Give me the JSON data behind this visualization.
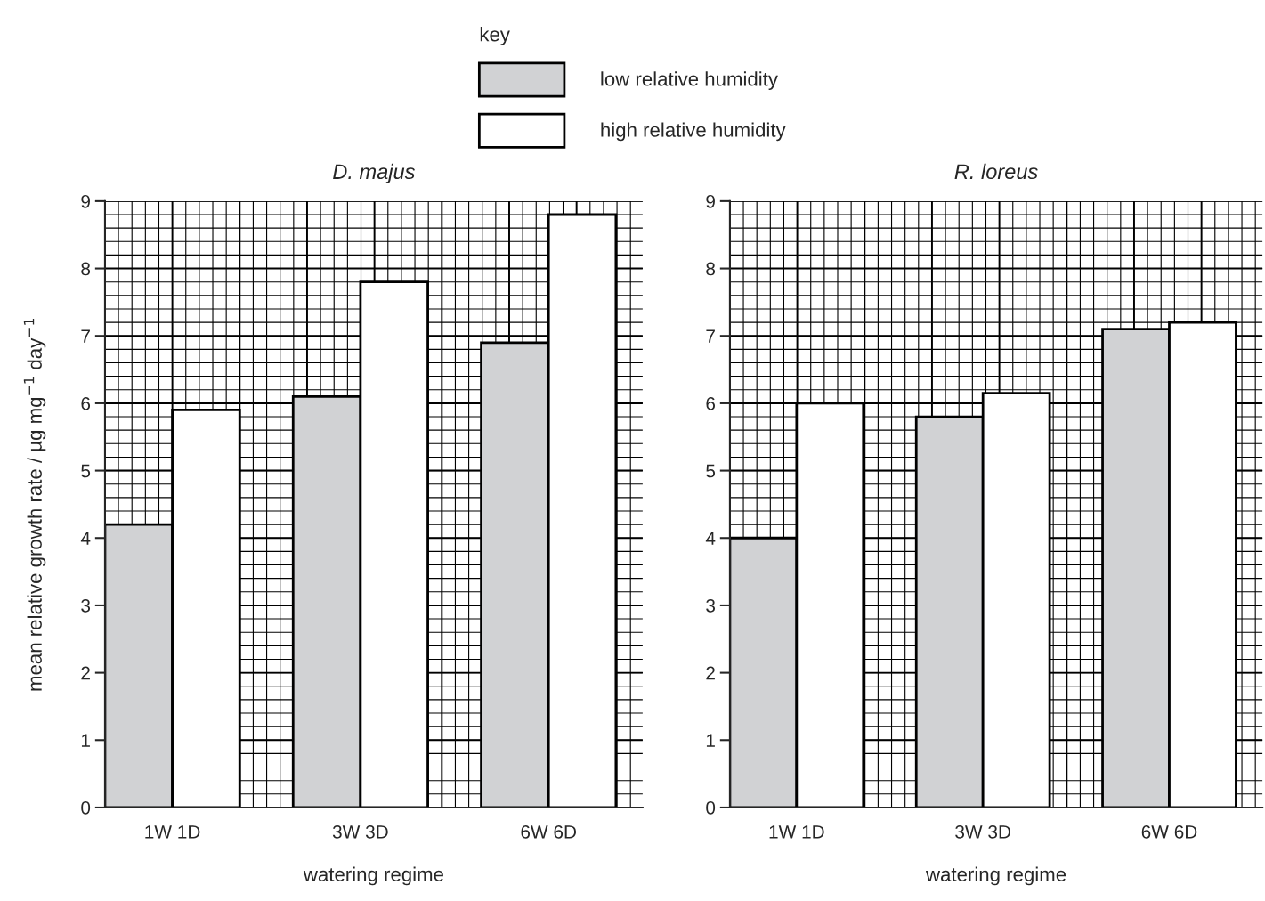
{
  "chart_data": [
    {
      "type": "bar",
      "title": "D. majus",
      "xlabel": "watering regime",
      "ylabel": "mean relative growth rate / µg mg$^{−1}$ day$^{−1}$",
      "legend_title": "key",
      "legend": "top",
      "categories": [
        "1W 1D",
        "3W 3D",
        "6W 6D"
      ],
      "series": [
        {
          "name": "low relative humidity",
          "color": "#d1d2d4",
          "values": [
            4.2,
            6.1,
            6.9
          ]
        },
        {
          "name": "high relative humidity",
          "color": "#ffffff",
          "values": [
            5.9,
            7.8,
            8.8
          ]
        }
      ],
      "ylim": [
        0,
        9
      ],
      "yticks": [
        0,
        1,
        2,
        3,
        4,
        5,
        6,
        7,
        8,
        9
      ],
      "grid": true
    },
    {
      "type": "bar",
      "title": "R. loreus",
      "xlabel": "watering regime",
      "categories": [
        "1W 1D",
        "3W 3D",
        "6W 6D"
      ],
      "series": [
        {
          "color": "#d1d2d4",
          "values": [
            4.0,
            5.8,
            7.1
          ]
        },
        {
          "color": "#ffffff",
          "values": [
            6.0,
            6.15,
            7.2
          ]
        }
      ],
      "ylim": [
        0,
        9
      ],
      "yticks": [
        0,
        1,
        2,
        3,
        4,
        5,
        6,
        7,
        8,
        9
      ],
      "grid": true
    }
  ]
}
